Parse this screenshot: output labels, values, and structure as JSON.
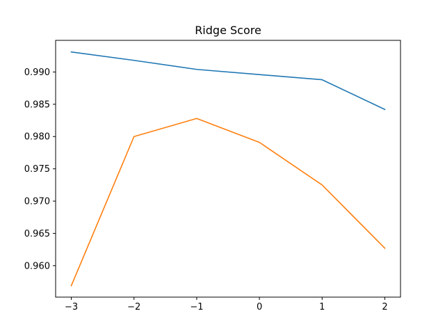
{
  "chart_data": {
    "type": "line",
    "title": "Ridge Score",
    "xlabel": "",
    "ylabel": "",
    "x": [
      -3,
      -2,
      -1,
      0,
      1,
      2
    ],
    "series": [
      {
        "color": "#1f77b4",
        "values": [
          0.9931,
          0.9918,
          0.9904,
          0.9896,
          0.9888,
          0.9842
        ]
      },
      {
        "color": "#ff7f0e",
        "values": [
          0.9569,
          0.98,
          0.9828,
          0.9791,
          0.9725,
          0.9627
        ]
      }
    ],
    "xlim": [
      -3.25,
      2.25
    ],
    "ylim": [
      0.95513,
      0.9949
    ],
    "xticks": [
      -3,
      -2,
      -1,
      0,
      1,
      2
    ],
    "xtick_labels": [
      "−3",
      "−2",
      "−1",
      "0",
      "1",
      "2"
    ],
    "yticks": [
      0.96,
      0.965,
      0.97,
      0.975,
      0.98,
      0.985,
      0.99
    ],
    "ytick_labels": [
      "0.960",
      "0.965",
      "0.970",
      "0.975",
      "0.980",
      "0.985",
      "0.990"
    ],
    "grid": false,
    "legend": "none"
  }
}
